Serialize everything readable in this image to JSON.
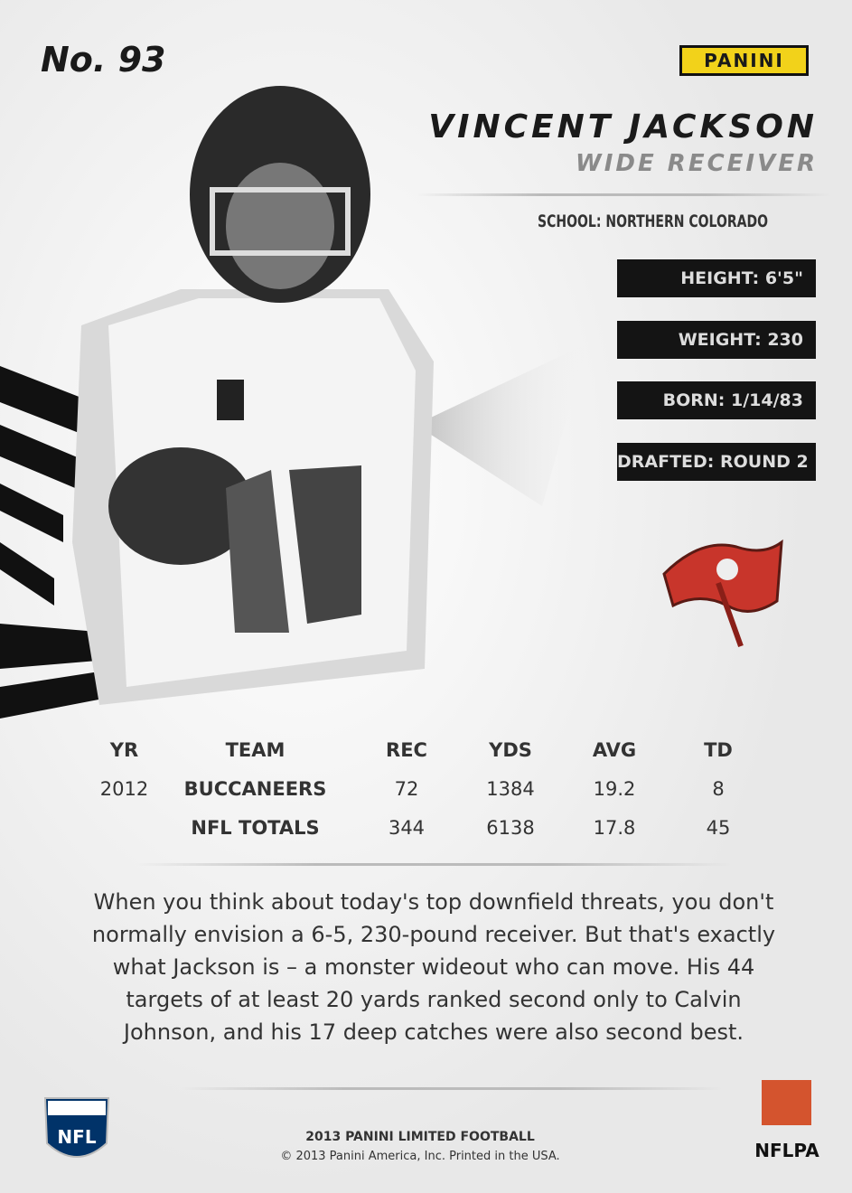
{
  "card": {
    "number": "No. 93",
    "brand": "PANINI",
    "name": "VINCENT JACKSON",
    "position": "WIDE RECEIVER",
    "school": "SCHOOL: NORTHERN COLORADO",
    "facts": [
      "HEIGHT: 6'5\"",
      "WEIGHT: 230",
      "BORN: 1/14/83",
      "DRAFTED: ROUND 2"
    ]
  },
  "stats": {
    "headers": [
      "YR",
      "TEAM",
      "REC",
      "YDS",
      "AVG",
      "TD"
    ],
    "rows": [
      {
        "yr": "2012",
        "team": "BUCCANEERS",
        "rec": 72,
        "yds": 1384,
        "avg": 19.2,
        "td": 8
      },
      {
        "team": "NFL TOTALS",
        "rec": 344,
        "yds": 6138,
        "avg": 17.8,
        "td": 45
      }
    ]
  },
  "bio": "When you think about today's top downfield threats, you don't normally envision a 6-5, 230-pound receiver. But that's exactly what Jackson is – a monster wideout who can move. His 44 targets of at least 20 yards ranked second only to Calvin Johnson, and his 17 deep catches were also second best.",
  "footer": {
    "line1": "2013 PANINI LIMITED FOOTBALL",
    "line2": "© 2013 Panini America, Inc. Printed in the USA.",
    "nfl": "NFL",
    "nflpa": "NFLPA"
  }
}
